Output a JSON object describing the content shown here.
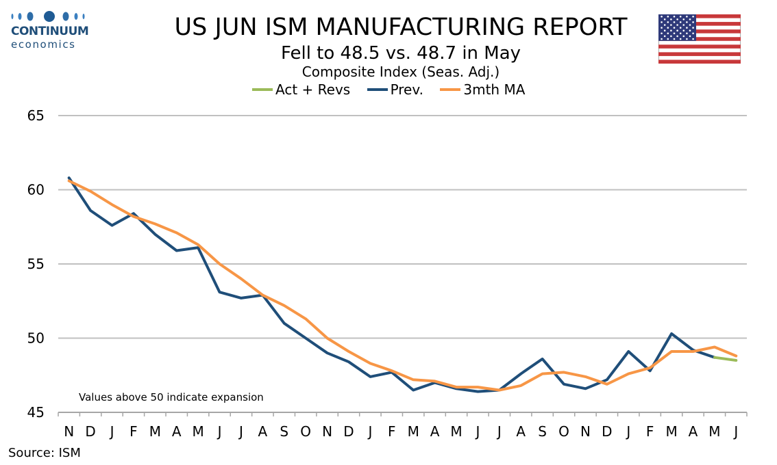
{
  "logo": {
    "name": "CONTINUUM",
    "sub": "economics"
  },
  "title": "US JUN ISM MANUFACTURING REPORT",
  "subtitle": "Fell to 48.5 vs. 48.7 in May",
  "subtitle2": "Composite Index (Seas. Adj.)",
  "flag": {
    "country": "United States",
    "icon": "us-flag-icon"
  },
  "source": "Source: ISM",
  "colors": {
    "act": "#9bbb59",
    "prev": "#1f4e79",
    "ma": "#f79646",
    "grid": "#c0c0c0"
  },
  "chart_data": {
    "type": "line",
    "categories": [
      "N",
      "D",
      "J",
      "F",
      "M",
      "A",
      "M",
      "J",
      "J",
      "A",
      "S",
      "O",
      "N",
      "D",
      "J",
      "F",
      "M",
      "A",
      "M",
      "J",
      "J",
      "A",
      "S",
      "O",
      "N",
      "D",
      "J",
      "F",
      "M",
      "A",
      "M",
      "J"
    ],
    "ylim": [
      45,
      65
    ],
    "yticks": [
      45,
      50,
      55,
      60,
      65
    ],
    "grid": true,
    "legend_position": "top-center",
    "annotation": "Values above 50 indicate expansion",
    "series": [
      {
        "name": "Act + Revs",
        "color": "#9bbb59",
        "values": [
          null,
          null,
          null,
          null,
          null,
          null,
          null,
          null,
          null,
          null,
          null,
          null,
          null,
          null,
          null,
          null,
          null,
          null,
          null,
          null,
          null,
          null,
          null,
          null,
          null,
          null,
          null,
          null,
          null,
          null,
          48.7,
          48.5
        ]
      },
      {
        "name": "Prev.",
        "color": "#1f4e79",
        "values": [
          60.8,
          58.6,
          57.6,
          58.4,
          57.0,
          55.9,
          56.1,
          53.1,
          52.7,
          52.9,
          51.0,
          50.0,
          49.0,
          48.4,
          47.4,
          47.7,
          46.5,
          47.0,
          46.6,
          46.4,
          46.5,
          47.6,
          48.6,
          46.9,
          46.6,
          47.2,
          49.1,
          47.8,
          50.3,
          49.2,
          48.7,
          null
        ]
      },
      {
        "name": "3mth MA",
        "color": "#f79646",
        "values": [
          60.6,
          59.9,
          59.0,
          58.2,
          57.7,
          57.1,
          56.3,
          55.0,
          54.0,
          52.9,
          52.2,
          51.3,
          50.0,
          49.1,
          48.3,
          47.8,
          47.2,
          47.1,
          46.7,
          46.7,
          46.5,
          46.8,
          47.6,
          47.7,
          47.4,
          46.9,
          47.6,
          48.0,
          49.1,
          49.1,
          49.4,
          48.8
        ]
      }
    ]
  }
}
